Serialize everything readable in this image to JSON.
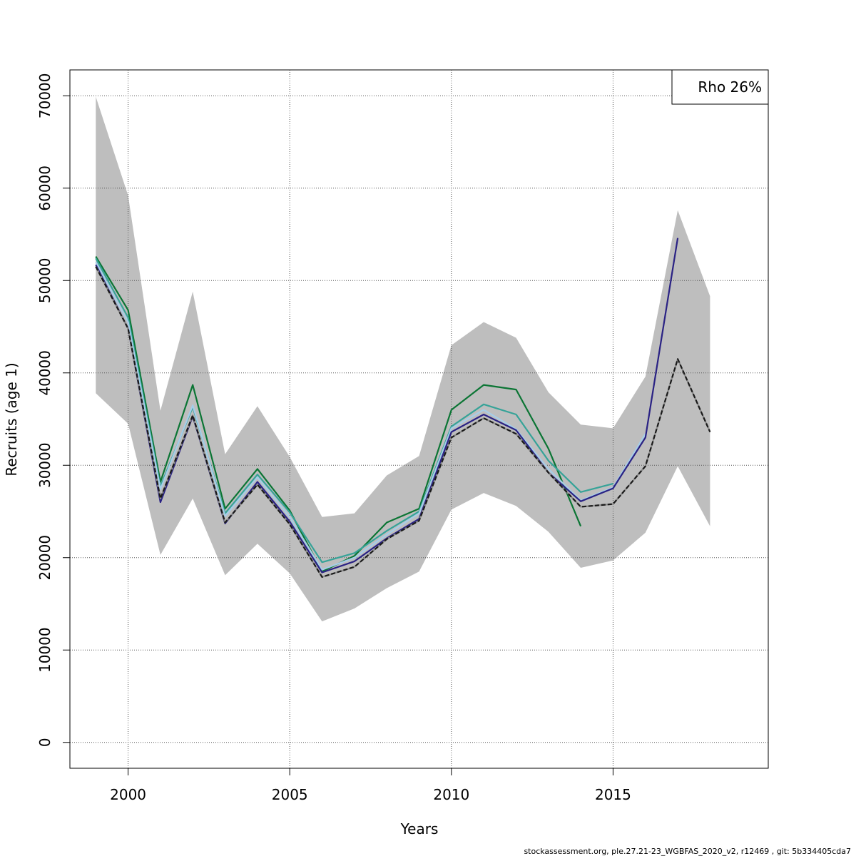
{
  "chart_data": {
    "type": "line",
    "title": "",
    "xlabel": "Years",
    "ylabel": "Recruits (age 1)",
    "xlim": [
      1998.2,
      2019.8
    ],
    "ylim": [
      -2800,
      72800
    ],
    "x_ticks": [
      2000,
      2005,
      2010,
      2015
    ],
    "x_tick_labels": [
      "2000",
      "2005",
      "2010",
      "2015"
    ],
    "y_ticks": [
      0,
      10000,
      20000,
      30000,
      40000,
      50000,
      60000,
      70000
    ],
    "y_tick_labels": [
      "0",
      "10000",
      "20000",
      "30000",
      "40000",
      "50000",
      "60000",
      "70000"
    ],
    "grid": true,
    "legend": {
      "position": "top-right",
      "text": "Rho 26%"
    },
    "footer": "stockassessment.org, ple.27.21-23_WGBFAS_2020_v2, r12469 , git: 5b334405cda7",
    "confidence_band": {
      "x": [
        1999,
        2000,
        2001,
        2002,
        2003,
        2004,
        2005,
        2006,
        2007,
        2008,
        2009,
        2010,
        2011,
        2012,
        2013,
        2014,
        2015,
        2016,
        2017,
        2018
      ],
      "lower": [
        37800,
        34500,
        20300,
        26400,
        18100,
        21500,
        18300,
        13100,
        14500,
        16700,
        18500,
        25200,
        27000,
        25600,
        22800,
        18900,
        19700,
        22700,
        29900,
        23400
      ],
      "upper": [
        69900,
        59200,
        35900,
        48800,
        31200,
        36400,
        30900,
        24400,
        24800,
        28900,
        31000,
        43000,
        45500,
        43800,
        37900,
        34400,
        34000,
        39600,
        57600,
        48300
      ],
      "color": "#bebebe"
    },
    "series": [
      {
        "color": "#1a1a1a",
        "style": "dashed-on-solid",
        "x": [
          1999,
          2000,
          2001,
          2002,
          2003,
          2004,
          2005,
          2006,
          2007,
          2008,
          2009,
          2010,
          2011,
          2012,
          2013,
          2014,
          2015,
          2016,
          2017,
          2018
        ],
        "values": [
          51500,
          44800,
          26400,
          35400,
          23800,
          27900,
          23600,
          17900,
          19000,
          22000,
          24000,
          33000,
          35100,
          33400,
          29200,
          25500,
          25800,
          29900,
          41500,
          33600
        ]
      },
      {
        "color": "#0b7534",
        "x": [
          1999,
          2000,
          2001,
          2002,
          2003,
          2004,
          2005,
          2006,
          2007,
          2008,
          2009,
          2010,
          2011,
          2012,
          2013,
          2014
        ],
        "values": [
          52600,
          46800,
          28200,
          38700,
          25300,
          29600,
          25100,
          18500,
          20200,
          23800,
          25300,
          36000,
          38700,
          38200,
          31800,
          23400
        ]
      },
      {
        "color": "#36a398",
        "x": [
          1999,
          2000,
          2001,
          2002,
          2003,
          2004,
          2005,
          2006,
          2007,
          2008,
          2009,
          2010,
          2011,
          2012,
          2013,
          2014,
          2015
        ],
        "values": [
          52400,
          46000,
          27700,
          36300,
          24800,
          29000,
          24900,
          19500,
          20500,
          22900,
          25000,
          34200,
          36600,
          35500,
          30500,
          27100,
          28000
        ]
      },
      {
        "color": "#a6cde8",
        "x": [
          1999,
          2000,
          2001,
          2002,
          2003,
          2004,
          2005,
          2006,
          2007,
          2008,
          2009,
          2010,
          2011,
          2012,
          2013,
          2014,
          2015,
          2016
        ],
        "values": [
          52000,
          45500,
          27400,
          36500,
          24500,
          28700,
          24400,
          18700,
          20000,
          22500,
          24800,
          34000,
          36000,
          33900,
          29600,
          26200,
          27600,
          33400
        ]
      },
      {
        "color": "#2a2284",
        "x": [
          1999,
          2000,
          2001,
          2002,
          2003,
          2004,
          2005,
          2006,
          2007,
          2008,
          2009,
          2010,
          2011,
          2012,
          2013,
          2014,
          2015,
          2016,
          2017
        ],
        "values": [
          51700,
          44800,
          26000,
          35300,
          23700,
          28200,
          23900,
          18400,
          19600,
          22100,
          24200,
          33600,
          35500,
          33800,
          29200,
          26100,
          27500,
          33000,
          54600
        ]
      }
    ]
  }
}
